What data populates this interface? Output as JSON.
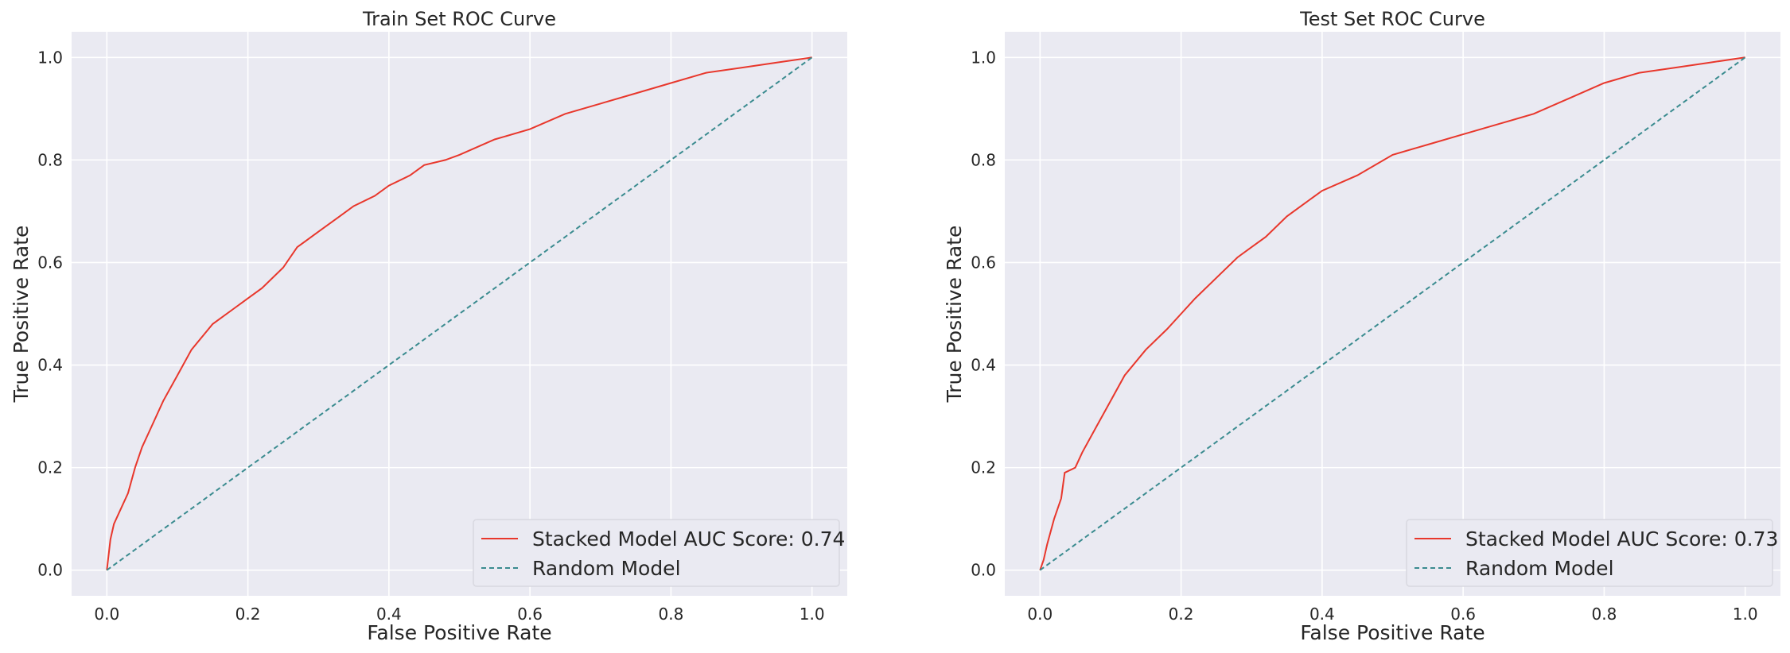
{
  "chart_data": [
    {
      "type": "line",
      "title": "Train Set ROC Curve",
      "xlabel": "False Positive Rate",
      "ylabel": "True Positive Rate",
      "xlim": [
        -0.05,
        1.05
      ],
      "ylim": [
        -0.05,
        1.05
      ],
      "xticks": [
        0.0,
        0.2,
        0.4,
        0.6,
        0.8,
        1.0
      ],
      "yticks": [
        0.0,
        0.2,
        0.4,
        0.6,
        0.8,
        1.0
      ],
      "xtick_labels": [
        "0.0",
        "0.2",
        "0.4",
        "0.6",
        "0.8",
        "1.0"
      ],
      "ytick_labels": [
        "0.0",
        "0.2",
        "0.4",
        "0.6",
        "0.8",
        "1.0"
      ],
      "grid": true,
      "legend_position": "lower-right",
      "series": [
        {
          "name": "Stacked Model AUC Score: 0.74",
          "color": "#e8372c",
          "style": "solid",
          "x": [
            0.0,
            0.005,
            0.01,
            0.02,
            0.03,
            0.04,
            0.05,
            0.06,
            0.08,
            0.1,
            0.12,
            0.15,
            0.18,
            0.2,
            0.22,
            0.25,
            0.27,
            0.3,
            0.33,
            0.35,
            0.38,
            0.4,
            0.43,
            0.45,
            0.48,
            0.5,
            0.55,
            0.6,
            0.65,
            0.7,
            0.75,
            0.8,
            0.85,
            0.9,
            0.95,
            1.0
          ],
          "y": [
            0.0,
            0.06,
            0.09,
            0.12,
            0.15,
            0.2,
            0.24,
            0.27,
            0.33,
            0.38,
            0.43,
            0.48,
            0.51,
            0.53,
            0.55,
            0.59,
            0.63,
            0.66,
            0.69,
            0.71,
            0.73,
            0.75,
            0.77,
            0.79,
            0.8,
            0.81,
            0.84,
            0.86,
            0.89,
            0.91,
            0.93,
            0.95,
            0.97,
            0.98,
            0.99,
            1.0
          ]
        },
        {
          "name": "Random Model",
          "color": "#3a8b8f",
          "style": "dashed",
          "x": [
            0.0,
            1.0
          ],
          "y": [
            0.0,
            1.0
          ]
        }
      ]
    },
    {
      "type": "line",
      "title": "Test Set ROC Curve",
      "xlabel": "False Positive Rate",
      "ylabel": "True Positive Rate",
      "xlim": [
        -0.05,
        1.05
      ],
      "ylim": [
        -0.05,
        1.05
      ],
      "xticks": [
        0.0,
        0.2,
        0.4,
        0.6,
        0.8,
        1.0
      ],
      "yticks": [
        0.0,
        0.2,
        0.4,
        0.6,
        0.8,
        1.0
      ],
      "xtick_labels": [
        "0.0",
        "0.2",
        "0.4",
        "0.6",
        "0.8",
        "1.0"
      ],
      "ytick_labels": [
        "0.0",
        "0.2",
        "0.4",
        "0.6",
        "0.8",
        "1.0"
      ],
      "grid": true,
      "legend_position": "lower-right",
      "series": [
        {
          "name": "Stacked Model AUC Score: 0.73",
          "color": "#e8372c",
          "style": "solid",
          "x": [
            0.0,
            0.005,
            0.01,
            0.02,
            0.03,
            0.035,
            0.05,
            0.06,
            0.08,
            0.1,
            0.12,
            0.15,
            0.18,
            0.2,
            0.22,
            0.25,
            0.28,
            0.3,
            0.32,
            0.35,
            0.38,
            0.4,
            0.45,
            0.5,
            0.55,
            0.6,
            0.65,
            0.7,
            0.75,
            0.8,
            0.85,
            0.9,
            0.95,
            1.0
          ],
          "y": [
            0.0,
            0.02,
            0.05,
            0.1,
            0.14,
            0.19,
            0.2,
            0.23,
            0.28,
            0.33,
            0.38,
            0.43,
            0.47,
            0.5,
            0.53,
            0.57,
            0.61,
            0.63,
            0.65,
            0.69,
            0.72,
            0.74,
            0.77,
            0.81,
            0.83,
            0.85,
            0.87,
            0.89,
            0.92,
            0.95,
            0.97,
            0.98,
            0.99,
            1.0
          ]
        },
        {
          "name": "Random Model",
          "color": "#3a8b8f",
          "style": "dashed",
          "x": [
            0.0,
            1.0
          ],
          "y": [
            0.0,
            1.0
          ]
        }
      ]
    }
  ]
}
